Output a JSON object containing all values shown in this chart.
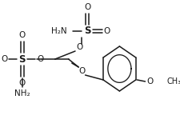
{
  "bg_color": "#ffffff",
  "line_color": "#1a1a1a",
  "lw": 1.1,
  "figsize": [
    2.25,
    1.49
  ],
  "dpi": 100,
  "xlim": [
    0,
    225
  ],
  "ylim": [
    0,
    149
  ]
}
